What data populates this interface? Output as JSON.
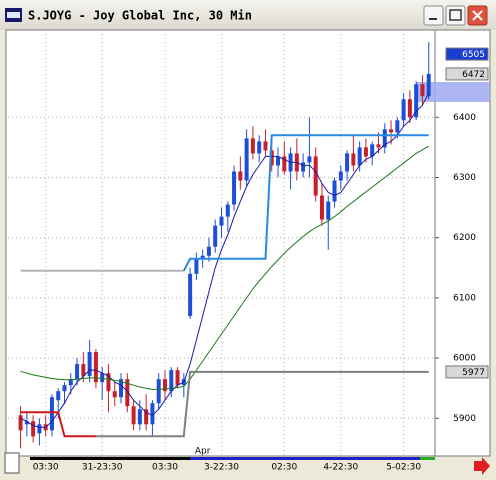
{
  "chart_data": {
    "type": "candlestick",
    "title": "S.JOYG - Joy Global Inc, 30 Min",
    "up_color": "#1c4fd8",
    "down_color": "#c8202a",
    "open": [
      5905,
      5890,
      5895,
      5875,
      5890,
      5880,
      5930,
      5945,
      5955,
      5965,
      5990,
      5970,
      6010,
      5960,
      5975,
      5945,
      5935,
      5965,
      5920,
      5890,
      5915,
      5890,
      5925,
      5965,
      5945,
      5980,
      5955,
      6070,
      6140,
      6165,
      6170,
      6185,
      6220,
      6235,
      6255,
      6310,
      6295,
      6365,
      6340,
      6360,
      6345,
      6320,
      6335,
      6310,
      6340,
      6310,
      6325,
      6335,
      6270,
      6230,
      6260,
      6295,
      6310,
      6340,
      6320,
      6350,
      6335,
      6355,
      6350,
      6380,
      6375,
      6395,
      6430,
      6400,
      6455,
      6435
    ],
    "high": [
      5920,
      5910,
      5905,
      5900,
      5905,
      5940,
      5950,
      5960,
      5975,
      6000,
      6010,
      6030,
      6015,
      5985,
      5990,
      5960,
      5975,
      5975,
      5930,
      5930,
      5940,
      5930,
      5975,
      5980,
      5985,
      5985,
      5975,
      6150,
      6175,
      6180,
      6200,
      6230,
      6250,
      6260,
      6320,
      6335,
      6380,
      6385,
      6370,
      6380,
      6370,
      6350,
      6360,
      6350,
      6365,
      6340,
      6400,
      6350,
      6290,
      6270,
      6300,
      6320,
      6345,
      6370,
      6360,
      6365,
      6360,
      6375,
      6390,
      6395,
      6400,
      6440,
      6445,
      6460,
      6470,
      6525
    ],
    "low": [
      5850,
      5870,
      5860,
      5855,
      5870,
      5870,
      5900,
      5925,
      5940,
      5955,
      5960,
      5960,
      5950,
      5930,
      5910,
      5920,
      5925,
      5910,
      5880,
      5880,
      5880,
      5870,
      5915,
      5930,
      5935,
      5950,
      5935,
      6065,
      6130,
      6150,
      6160,
      6175,
      6200,
      6210,
      6245,
      6280,
      6285,
      6330,
      6325,
      6335,
      6310,
      6300,
      6305,
      6280,
      6295,
      6300,
      6300,
      6260,
      6220,
      6180,
      6250,
      6280,
      6295,
      6310,
      6310,
      6325,
      6320,
      6340,
      6340,
      6355,
      6365,
      6385,
      6390,
      6395,
      6420,
      6430
    ],
    "close": [
      5880,
      5895,
      5870,
      5890,
      5880,
      5935,
      5945,
      5955,
      5965,
      5990,
      5970,
      6010,
      5960,
      5975,
      5945,
      5935,
      5965,
      5920,
      5890,
      5915,
      5890,
      5925,
      5965,
      5945,
      5980,
      5955,
      5965,
      6140,
      6165,
      6170,
      6185,
      6220,
      6235,
      6255,
      6310,
      6295,
      6365,
      6340,
      6360,
      6345,
      6320,
      6335,
      6310,
      6340,
      6310,
      6325,
      6335,
      6270,
      6230,
      6260,
      6295,
      6310,
      6340,
      6320,
      6350,
      6335,
      6355,
      6350,
      6380,
      6375,
      6395,
      6430,
      6400,
      6455,
      6435,
      6472
    ],
    "overlays": [
      {
        "color": "#1a1aa0",
        "width": 1,
        "values": [
          5900,
          5895,
          5888,
          5885,
          5885,
          5895,
          5910,
          5925,
          5945,
          5960,
          5970,
          5980,
          5980,
          5975,
          5970,
          5960,
          5955,
          5945,
          5930,
          5920,
          5910,
          5905,
          5915,
          5930,
          5945,
          5955,
          5960,
          5990,
          6030,
          6070,
          6110,
          6150,
          6180,
          6205,
          6235,
          6260,
          6285,
          6305,
          6320,
          6335,
          6335,
          6335,
          6330,
          6325,
          6325,
          6320,
          6320,
          6310,
          6290,
          6275,
          6270,
          6275,
          6290,
          6305,
          6320,
          6330,
          6335,
          6345,
          6355,
          6360,
          6370,
          6385,
          6395,
          6410,
          6420,
          6440
        ]
      },
      {
        "color": "#1a7a1a",
        "width": 1,
        "values": [
          5978,
          5975,
          5972,
          5970,
          5968,
          5966,
          5965,
          5964,
          5964,
          5965,
          5966,
          5967,
          5967,
          5966,
          5965,
          5963,
          5961,
          5958,
          5955,
          5952,
          5950,
          5948,
          5948,
          5949,
          5950,
          5951,
          5953,
          5965,
          5980,
          5995,
          6010,
          6025,
          6040,
          6055,
          6070,
          6085,
          6100,
          6115,
          6128,
          6140,
          6152,
          6163,
          6174,
          6184,
          6193,
          6202,
          6210,
          6217,
          6222,
          6228,
          6235,
          6243,
          6252,
          6260,
          6268,
          6276,
          6284,
          6292,
          6300,
          6308,
          6316,
          6324,
          6332,
          6340,
          6346,
          6352
        ]
      },
      {
        "color": "#d01818",
        "width": 2,
        "values": [
          5910,
          5910,
          5910,
          5910,
          5910,
          5910,
          5910,
          5870,
          5870,
          5870,
          5870,
          5870,
          5870,
          null,
          null,
          null,
          null,
          null,
          null,
          null,
          null,
          null,
          null,
          null,
          null,
          null,
          null,
          null,
          null,
          null,
          null,
          null,
          null,
          null,
          null,
          null,
          null,
          null,
          null,
          null,
          null,
          null,
          null,
          null,
          null,
          null,
          null,
          null,
          null,
          null,
          null,
          null,
          null,
          null,
          null,
          null,
          null,
          null,
          null,
          null,
          null,
          null,
          null,
          null,
          null,
          null
        ]
      },
      {
        "color": "#808080",
        "width": 2,
        "values": [
          null,
          null,
          null,
          null,
          null,
          null,
          null,
          null,
          null,
          null,
          null,
          null,
          5870,
          5870,
          5870,
          5870,
          5870,
          5870,
          5870,
          5870,
          5870,
          5870,
          5870,
          5870,
          5870,
          5870,
          5870,
          5977,
          5977,
          5977,
          5977,
          5977,
          5977,
          5977,
          5977,
          5977,
          5977,
          5977,
          5977,
          5977,
          5977,
          5977,
          5977,
          5977,
          5977,
          5977,
          5977,
          5977,
          5977,
          5977,
          5977,
          5977,
          5977,
          5977,
          5977,
          5977,
          5977,
          5977,
          5977,
          5977,
          5977,
          5977,
          5977,
          5977,
          5977,
          5977
        ]
      },
      {
        "color": "#b4b4b4",
        "width": 2,
        "values": [
          6145,
          6145,
          6145,
          6145,
          6145,
          6145,
          6145,
          6145,
          6145,
          6145,
          6145,
          6145,
          6145,
          6145,
          6145,
          6145,
          6145,
          6145,
          6145,
          6145,
          6145,
          6145,
          6145,
          6145,
          6145,
          6145,
          6145,
          null,
          null,
          null,
          null,
          null,
          null,
          null,
          null,
          null,
          null,
          null,
          null,
          null,
          null,
          null,
          null,
          null,
          null,
          null,
          null,
          null,
          null,
          null,
          null,
          null,
          null,
          null,
          null,
          null,
          null,
          null,
          null,
          null,
          null,
          null,
          null,
          null,
          null,
          null
        ]
      },
      {
        "color": "#2a8ae0",
        "width": 2,
        "values": [
          null,
          null,
          null,
          null,
          null,
          null,
          null,
          null,
          null,
          null,
          null,
          null,
          null,
          null,
          null,
          null,
          null,
          null,
          null,
          null,
          null,
          null,
          null,
          null,
          null,
          null,
          6145,
          6165,
          6165,
          6165,
          6165,
          6165,
          6165,
          6165,
          6165,
          6165,
          6165,
          6165,
          6165,
          6165,
          6370,
          6370,
          6370,
          6370,
          6370,
          6370,
          6370,
          6370,
          6370,
          6370,
          6370,
          6370,
          6370,
          6370,
          6370,
          6370,
          6370,
          6370,
          6370,
          6370,
          6370,
          6370,
          6370,
          6370,
          6370,
          6370
        ]
      }
    ],
    "xlim": [
      -2,
      66
    ],
    "xticks": [
      {
        "value": 4,
        "label": "03:30"
      },
      {
        "value": 13,
        "label": "31-23:30"
      },
      {
        "value": 23,
        "label": "03:30"
      },
      {
        "value": 32,
        "label": "3-22:30"
      },
      {
        "value": 42,
        "label": "02:30"
      },
      {
        "value": 51,
        "label": "4-22:30"
      },
      {
        "value": 61,
        "label": "5-02:30"
      }
    ],
    "ylim": [
      5839,
      6545
    ],
    "yticks": [
      5900,
      6000,
      6100,
      6200,
      6300,
      6400
    ],
    "grid": true,
    "annotations": [
      {
        "text": "Apr",
        "x": 29
      }
    ],
    "price_markers": [
      {
        "value": 6505,
        "color": "#1a3fd0",
        "text_color": "#ffffff"
      },
      {
        "value": 6472,
        "color": "#d8d8d8",
        "text_color": "#000000"
      },
      {
        "value": 5977,
        "color": "#d8d8d8",
        "text_color": "#000000"
      }
    ]
  }
}
